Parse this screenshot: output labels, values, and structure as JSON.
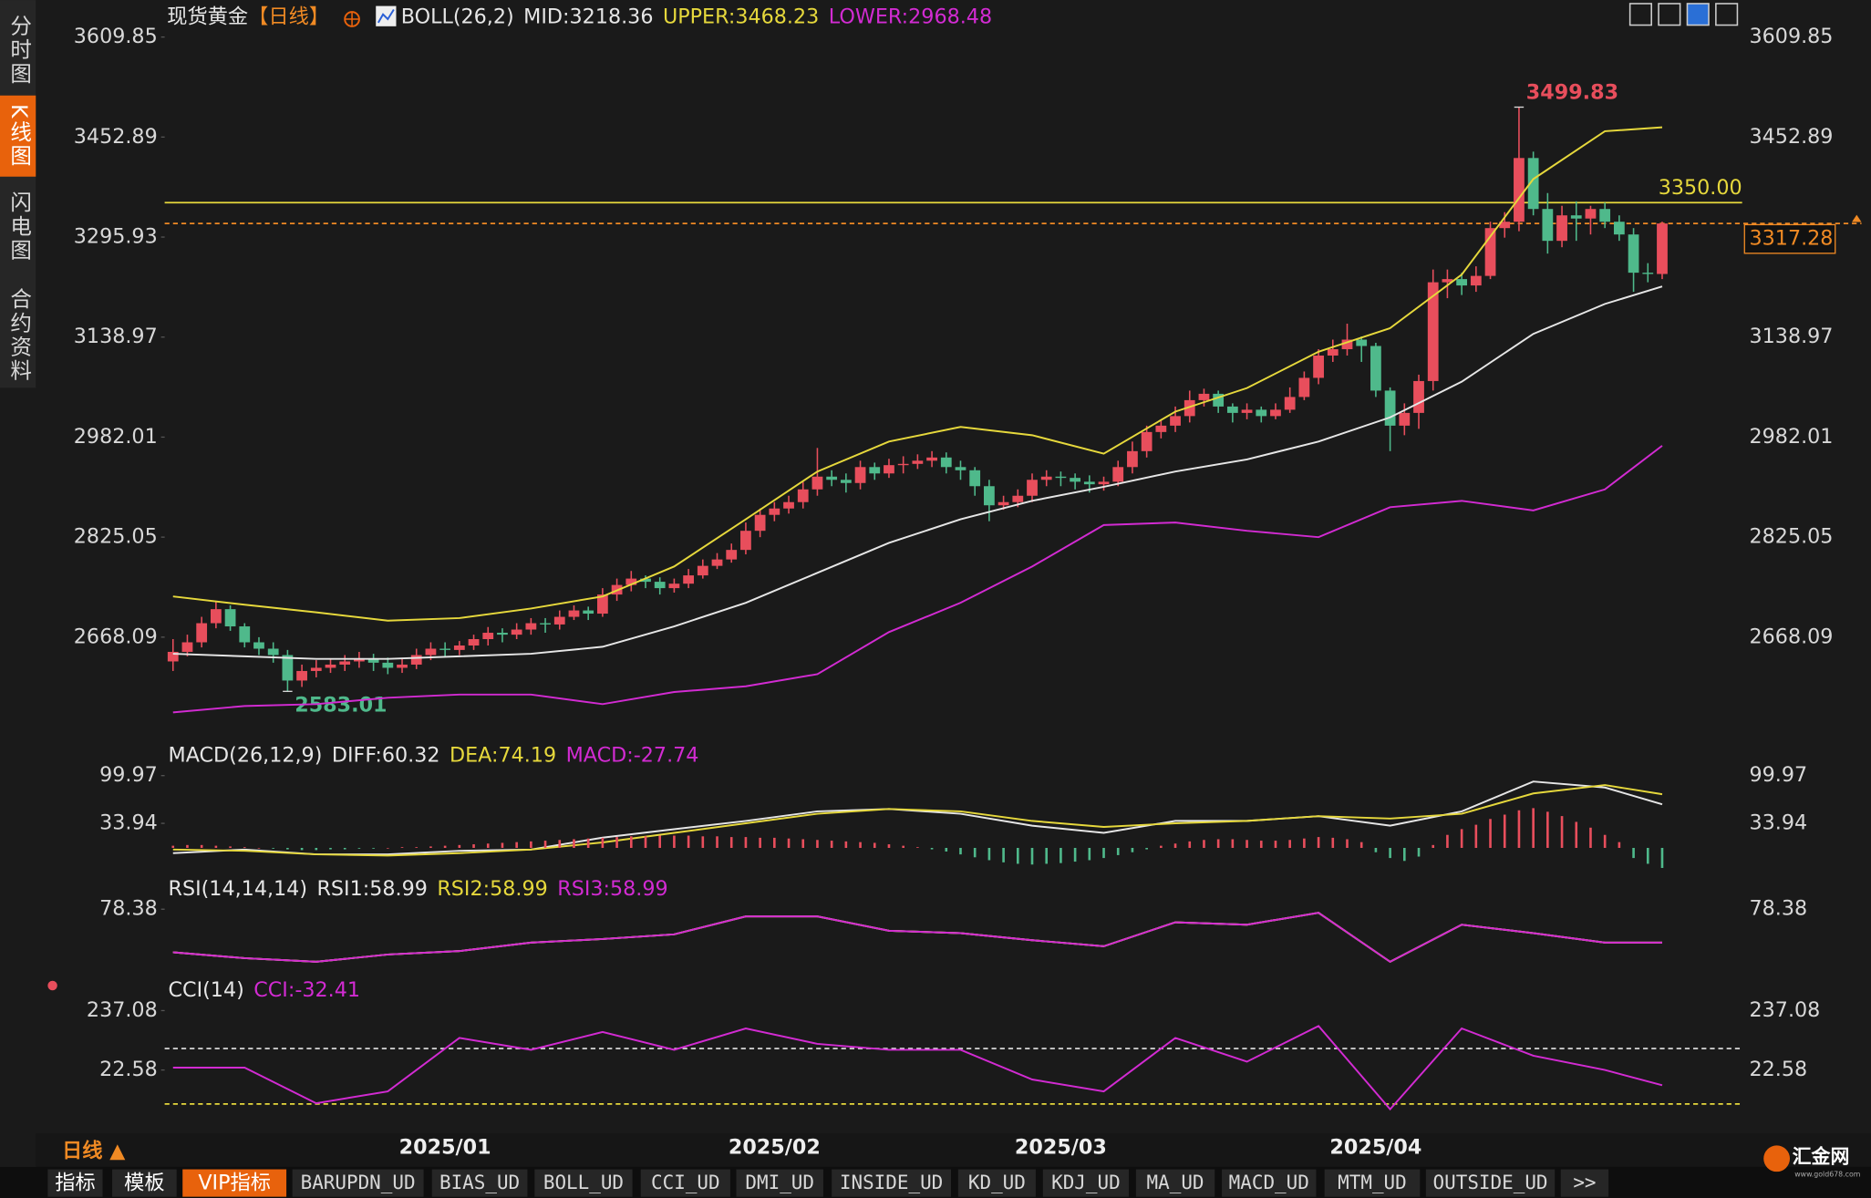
{
  "sidebar": {
    "tabs": [
      "分时图",
      "K线图",
      "闪电图",
      "合约资料"
    ]
  },
  "footer": {
    "period": "日线 ▲",
    "tabs": [
      "指标",
      "模板",
      "VIP指标",
      "BARUPDN_UD",
      "BIAS_UD",
      "BOLL_UD",
      "CCI_UD",
      "DMI_UD",
      "INSIDE_UD",
      "KD_UD",
      "KDJ_UD",
      "MA_UD",
      "MACD_UD",
      "MTM_UD",
      "OUTSIDE_UD",
      ">>"
    ],
    "logo": "汇金网",
    "url": "www.gold678.com"
  },
  "chart_data": [
    {
      "type": "candlestick",
      "title": "现货黄金",
      "subtitle": "【日线】",
      "indicator": "BOLL(26,2)",
      "up_color": "#e84e5c",
      "down_color": "#4fb98b",
      "ylim": [
        2522,
        3609.85
      ],
      "yticks": [
        3609.85,
        3452.89,
        3295.93,
        3138.97,
        2982.01,
        2825.05,
        2668.09
      ],
      "categories": [
        null,
        null,
        null,
        null,
        null,
        null,
        null,
        null,
        null,
        null,
        null,
        null,
        null,
        null,
        null,
        null,
        null,
        null,
        null,
        "2025/01",
        null,
        null,
        null,
        null,
        null,
        null,
        null,
        null,
        null,
        null,
        null,
        null,
        null,
        null,
        null,
        null,
        null,
        null,
        null,
        null,
        null,
        null,
        "2025/02",
        null,
        null,
        null,
        null,
        null,
        null,
        null,
        null,
        null,
        null,
        null,
        null,
        null,
        null,
        null,
        null,
        null,
        null,
        null,
        "2025/03",
        null,
        null,
        null,
        null,
        null,
        null,
        null,
        null,
        null,
        null,
        null,
        null,
        null,
        null,
        null,
        null,
        null,
        null,
        null,
        null,
        null,
        "2025/04",
        null,
        null,
        null,
        null,
        null,
        null,
        null,
        null,
        null,
        null,
        null,
        null,
        null,
        null,
        null,
        null,
        null,
        null,
        null,
        null
      ],
      "open": [
        2630,
        2645,
        2660,
        2690,
        2712,
        2685,
        2660,
        2650,
        2640,
        2600,
        2615,
        2620,
        2625,
        2630,
        2635,
        2628,
        2620,
        2625,
        2640,
        2650,
        2648,
        2655,
        2665,
        2675,
        2672,
        2680,
        2690,
        2688,
        2700,
        2710,
        2705,
        2735,
        2750,
        2760,
        2755,
        2745,
        2752,
        2765,
        2780,
        2790,
        2805,
        2835,
        2860,
        2870,
        2880,
        2900,
        2920,
        2915,
        2910,
        2935,
        2925,
        2938,
        2940,
        2945,
        2950,
        2935,
        2930,
        2905,
        2875,
        2880,
        2890,
        2915,
        2920,
        2918,
        2912,
        2908,
        2912,
        2935,
        2960,
        2990,
        3000,
        3015,
        3040,
        3050,
        3030,
        3020,
        3025,
        3015,
        3025,
        3045,
        3075,
        3110,
        3120,
        3135,
        3125,
        3055,
        3000,
        3020,
        3070,
        3225,
        3230,
        3220,
        3235,
        3310,
        3320,
        3420,
        3340,
        3290,
        3330,
        3325,
        3340,
        3320,
        3300,
        3240,
        3238
      ],
      "high": [
        2665,
        2672,
        2700,
        2725,
        2718,
        2690,
        2668,
        2660,
        2648,
        2625,
        2632,
        2635,
        2640,
        2645,
        2642,
        2636,
        2634,
        2650,
        2660,
        2660,
        2662,
        2672,
        2684,
        2682,
        2690,
        2698,
        2698,
        2710,
        2718,
        2716,
        2745,
        2760,
        2772,
        2765,
        2762,
        2760,
        2775,
        2790,
        2800,
        2815,
        2848,
        2870,
        2880,
        2890,
        2912,
        2965,
        2930,
        2925,
        2945,
        2942,
        2948,
        2952,
        2955,
        2960,
        2958,
        2945,
        2935,
        2915,
        2890,
        2900,
        2925,
        2930,
        2928,
        2925,
        2922,
        2920,
        2945,
        2975,
        3000,
        3010,
        3030,
        3055,
        3058,
        3055,
        3035,
        3035,
        3030,
        3035,
        3060,
        3085,
        3120,
        3135,
        3160,
        3140,
        3130,
        3060,
        3035,
        3080,
        3245,
        3245,
        3240,
        3250,
        3320,
        3335,
        3499.83,
        3430,
        3365,
        3345,
        3352,
        3345,
        3350,
        3330,
        3310,
        3255,
        3320
      ],
      "low": [
        2615,
        2638,
        2652,
        2682,
        2678,
        2652,
        2640,
        2628,
        2583.01,
        2590,
        2605,
        2612,
        2615,
        2620,
        2615,
        2610,
        2612,
        2618,
        2632,
        2638,
        2640,
        2648,
        2655,
        2660,
        2665,
        2672,
        2675,
        2680,
        2695,
        2695,
        2700,
        2725,
        2740,
        2745,
        2735,
        2738,
        2745,
        2760,
        2775,
        2785,
        2798,
        2825,
        2850,
        2862,
        2870,
        2890,
        2905,
        2895,
        2900,
        2915,
        2918,
        2925,
        2932,
        2935,
        2925,
        2915,
        2890,
        2850,
        2868,
        2872,
        2880,
        2905,
        2905,
        2900,
        2895,
        2898,
        2905,
        2925,
        2950,
        2980,
        2990,
        3005,
        3030,
        3020,
        3005,
        3010,
        3005,
        3010,
        3020,
        3040,
        3065,
        3100,
        3110,
        3100,
        3045,
        2960,
        2985,
        2995,
        3055,
        3200,
        3205,
        3210,
        3230,
        3295,
        3305,
        3330,
        3270,
        3280,
        3290,
        3300,
        3310,
        3290,
        3210,
        3225,
        3230
      ],
      "close": [
        2645,
        2660,
        2690,
        2712,
        2685,
        2660,
        2650,
        2640,
        2600,
        2615,
        2620,
        2625,
        2630,
        2635,
        2628,
        2620,
        2625,
        2640,
        2650,
        2648,
        2655,
        2665,
        2675,
        2672,
        2680,
        2690,
        2688,
        2700,
        2710,
        2705,
        2735,
        2750,
        2760,
        2755,
        2745,
        2752,
        2765,
        2780,
        2790,
        2805,
        2835,
        2860,
        2870,
        2880,
        2900,
        2920,
        2915,
        2910,
        2935,
        2925,
        2938,
        2940,
        2945,
        2950,
        2935,
        2930,
        2905,
        2875,
        2880,
        2890,
        2915,
        2920,
        2918,
        2912,
        2908,
        2912,
        2935,
        2960,
        2990,
        3000,
        3015,
        3040,
        3050,
        3030,
        3020,
        3025,
        3015,
        3025,
        3045,
        3075,
        3110,
        3120,
        3135,
        3125,
        3055,
        3000,
        3020,
        3070,
        3225,
        3230,
        3220,
        3235,
        3310,
        3320,
        3420,
        3340,
        3290,
        3330,
        3325,
        3340,
        3320,
        3300,
        3240,
        3238,
        3317.28
      ],
      "series": [
        {
          "name": "MID:3218.36",
          "color": "#e6e6e6",
          "x": [
            0,
            5,
            10,
            15,
            20,
            25,
            30,
            35,
            40,
            45,
            50,
            55,
            60,
            65,
            70,
            75,
            80,
            85,
            90,
            95,
            100,
            104
          ],
          "values": [
            2642,
            2638,
            2634,
            2634,
            2638,
            2642,
            2653,
            2685,
            2722,
            2769,
            2816,
            2853,
            2882,
            2904,
            2928,
            2947,
            2975,
            3013,
            3069,
            3144,
            3191,
            3218.36
          ]
        },
        {
          "name": "UPPER:3468.23",
          "color": "#e6d83c",
          "x": [
            0,
            5,
            10,
            15,
            20,
            25,
            30,
            35,
            40,
            45,
            50,
            55,
            60,
            65,
            70,
            75,
            80,
            85,
            90,
            95,
            100,
            104
          ],
          "values": [
            2732,
            2719,
            2707,
            2694,
            2698,
            2713,
            2732,
            2779,
            2853,
            2928,
            2975,
            2998,
            2985,
            2956,
            3022,
            3059,
            3116,
            3153,
            3237,
            3387,
            3462,
            3468.23
          ]
        },
        {
          "name": "LOWER:2968.48",
          "color": "#d22bd2",
          "x": [
            0,
            5,
            10,
            15,
            20,
            25,
            30,
            35,
            40,
            45,
            50,
            55,
            60,
            65,
            70,
            75,
            80,
            85,
            90,
            95,
            100,
            104
          ],
          "values": [
            2550,
            2560,
            2563,
            2573,
            2578,
            2578,
            2563,
            2582,
            2591,
            2610,
            2676,
            2722,
            2779,
            2844,
            2848,
            2835,
            2825,
            2872,
            2882,
            2867,
            2900,
            2968.48
          ]
        }
      ],
      "hlines": [
        {
          "value": 3350,
          "label": "3350.00",
          "color": "#e6d83c",
          "style": "solid"
        },
        {
          "value": 3317.28,
          "label": "3317.28",
          "color": "#f08a24",
          "style": "dashed",
          "box": true
        }
      ],
      "annotations": [
        {
          "value": 3499.83,
          "label": "3499.83",
          "at": "high",
          "color": "#e84e5c"
        },
        {
          "value": 2583.01,
          "label": "2583.01",
          "at": "low",
          "color": "#4fb98b"
        }
      ]
    },
    {
      "type": "macd",
      "title": "MACD(26,12,9)",
      "up_color": "#e84e5c",
      "down_color": "#4fb98b",
      "ylim": [
        -32,
        116.5
      ],
      "yticks": [
        99.97,
        33.94
      ],
      "series": [
        {
          "name": "DIFF:60.32",
          "color": "#e6e6e6",
          "x": [
            0,
            5,
            10,
            15,
            20,
            25,
            30,
            35,
            40,
            45,
            50,
            55,
            60,
            65,
            70,
            75,
            80,
            85,
            90,
            95,
            100,
            104
          ],
          "values": [
            -7.3,
            -2.3,
            -8.9,
            -8.9,
            -4.0,
            -2.3,
            14.2,
            25.8,
            37.3,
            50.5,
            53.8,
            47.2,
            30.7,
            20.8,
            37.3,
            37.3,
            43.9,
            30.7,
            50.5,
            91.8,
            83.5,
            60.32
          ]
        },
        {
          "name": "DEA:74.19",
          "color": "#e6d83c",
          "x": [
            0,
            5,
            10,
            15,
            20,
            25,
            30,
            35,
            40,
            45,
            50,
            55,
            60,
            65,
            70,
            75,
            80,
            85,
            90,
            95,
            100,
            104
          ],
          "values": [
            -2.3,
            -4.0,
            -8.9,
            -10.6,
            -7.3,
            -2.3,
            7.6,
            20.8,
            34.0,
            47.2,
            53.8,
            50.5,
            37.3,
            29.0,
            34.0,
            37.3,
            43.9,
            40.6,
            47.2,
            75.3,
            86.9,
            74.19
          ]
        },
        {
          "name": "MACD:-27.74",
          "color": "#d22bd2",
          "kind": "bar",
          "values": [
            3,
            4,
            4,
            3,
            2,
            1,
            0,
            -1,
            -2,
            -3,
            -3,
            -2,
            -2,
            -1,
            -1,
            0,
            1,
            1,
            2,
            3,
            4,
            5,
            6,
            7,
            8,
            9,
            10,
            11,
            12,
            13,
            14,
            15,
            16,
            16,
            17,
            17,
            17,
            16,
            16,
            15,
            15,
            14,
            14,
            13,
            12,
            11,
            10,
            9,
            8,
            7,
            5,
            3,
            1,
            -2,
            -5,
            -9,
            -13,
            -17,
            -20,
            -22,
            -23,
            -22,
            -21,
            -19,
            -17,
            -14,
            -10,
            -6,
            -2,
            3,
            6,
            9,
            11,
            12,
            12,
            11,
            10,
            10,
            11,
            13,
            15,
            14,
            12,
            8,
            -6,
            -14,
            -18,
            -12,
            4,
            18,
            26,
            32,
            40,
            46,
            52,
            55,
            50,
            44,
            36,
            28,
            18,
            8,
            -14,
            -22,
            -27.74
          ]
        }
      ]
    },
    {
      "type": "line",
      "title": "RSI(14,14,14)",
      "ylim": [
        41.7,
        93.6
      ],
      "yticks": [
        78.38
      ],
      "series": [
        {
          "name": "RSI1:58.99",
          "color": "#e6e6e6",
          "x": [
            0,
            5,
            10,
            15,
            20,
            25,
            30,
            35,
            40,
            45,
            50,
            55,
            60,
            65,
            70,
            75,
            80,
            85,
            90,
            95,
            100,
            104
          ],
          "values": [
            53.4,
            50.0,
            47.9,
            52.1,
            54.1,
            59.0,
            61.1,
            63.8,
            74.2,
            74.2,
            65.9,
            64.5,
            60.4,
            56.9,
            70.8,
            69.4,
            76.3,
            47.9,
            69.4,
            64.5,
            59.0,
            58.99
          ]
        },
        {
          "name": "RSI2:58.99",
          "color": "#e6d83c",
          "x": [
            0,
            5,
            10,
            15,
            20,
            25,
            30,
            35,
            40,
            45,
            50,
            55,
            60,
            65,
            70,
            75,
            80,
            85,
            90,
            95,
            100,
            104
          ],
          "values": [
            53.4,
            50.0,
            47.9,
            52.1,
            54.1,
            59.0,
            61.1,
            63.8,
            74.2,
            74.2,
            65.9,
            64.5,
            60.4,
            56.9,
            70.8,
            69.4,
            76.3,
            47.9,
            69.4,
            64.5,
            59.0,
            58.99
          ]
        },
        {
          "name": "RSI3:58.99",
          "color": "#d22bd2",
          "x": [
            0,
            5,
            10,
            15,
            20,
            25,
            30,
            35,
            40,
            45,
            50,
            55,
            60,
            65,
            70,
            75,
            80,
            85,
            90,
            95,
            100,
            104
          ],
          "values": [
            53.4,
            50.0,
            47.9,
            52.1,
            54.1,
            59.0,
            61.1,
            63.8,
            74.2,
            74.2,
            65.9,
            64.5,
            60.4,
            56.9,
            70.8,
            69.4,
            76.3,
            47.9,
            69.4,
            64.5,
            59.0,
            58.99
          ]
        }
      ]
    },
    {
      "type": "line",
      "title": "CCI(14)",
      "ylim": [
        -206.8,
        288.6
      ],
      "yticks": [
        237.08,
        22.58
      ],
      "series": [
        {
          "name": "CCI:-32.41",
          "color": "#d22bd2",
          "x": [
            0,
            5,
            10,
            15,
            20,
            25,
            30,
            35,
            40,
            45,
            50,
            55,
            60,
            65,
            70,
            75,
            80,
            85,
            90,
            95,
            100,
            104
          ],
          "values": [
            31.2,
            31.2,
            -97.5,
            -54.6,
            138.4,
            95.5,
            159.9,
            95.5,
            172.7,
            117.0,
            95.5,
            95.5,
            -11.7,
            -54.6,
            138.4,
            52.6,
            181.3,
            -119.0,
            172.7,
            74.1,
            22.6,
            -32.41
          ]
        }
      ],
      "hlines": [
        {
          "value": 100,
          "color": "#e6e6e6",
          "style": "dashed"
        },
        {
          "value": -100,
          "color": "#e6d83c",
          "style": "dashed"
        }
      ]
    }
  ]
}
